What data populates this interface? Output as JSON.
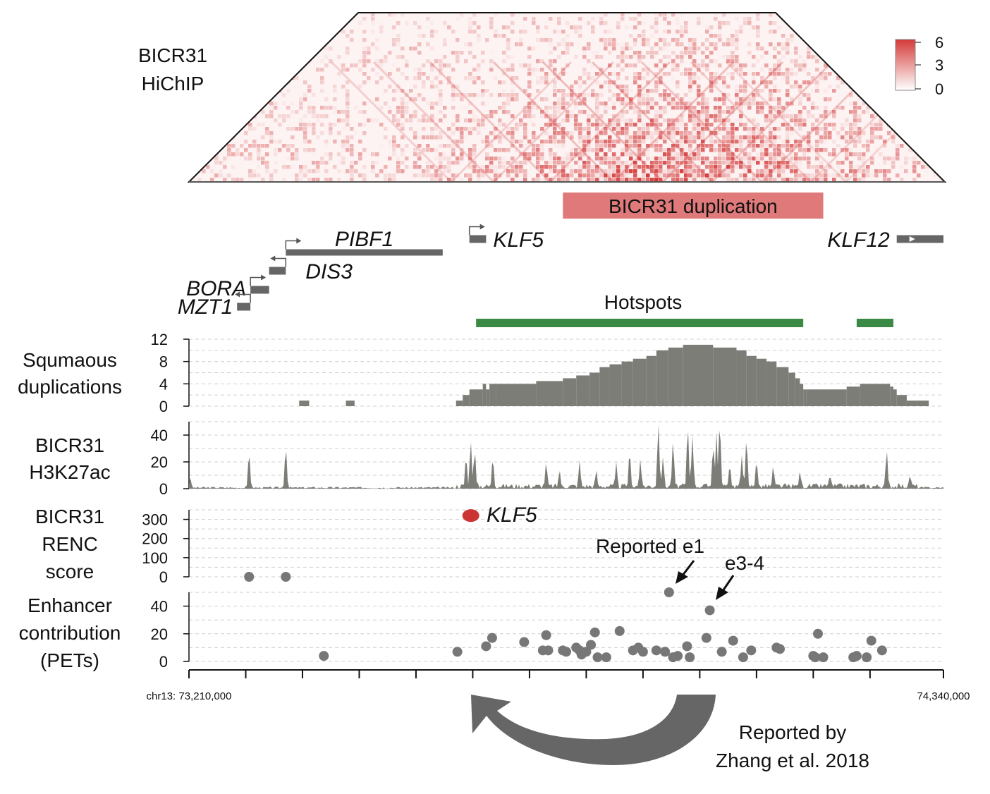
{
  "colors": {
    "hic": "#d43a3a",
    "dup_bar": "#e07a7a",
    "gene": "#666666",
    "hotspot": "#3a8a45",
    "track_fill": "#7d7d78",
    "dot": "#777777",
    "klf5_dot": "#cc3333",
    "arrow": "#666666"
  },
  "hichip": {
    "label_line1": "BICR31",
    "label_line2": "HiChIP",
    "legend_ticks": [
      "6",
      "3",
      "0"
    ],
    "duplication_label": "BICR31 duplication",
    "duplication_range": [
      73770000,
      74160000
    ]
  },
  "genes": [
    {
      "name": "PIBF1",
      "start": 73355000,
      "end": 73590000,
      "strand": "+",
      "row": 1
    },
    {
      "name": "KLF5",
      "start": 73630000,
      "end": 73655000,
      "strand": "+",
      "row": 0
    },
    {
      "name": "KLF12",
      "start": 74270000,
      "end": 74340000,
      "strand": "-",
      "row": 0
    },
    {
      "name": "DIS3",
      "start": 73330000,
      "end": 73355000,
      "strand": "-",
      "row": 2
    },
    {
      "name": "BORA",
      "start": 73302000,
      "end": 73330000,
      "strand": "+",
      "row": 3
    },
    {
      "name": "MZT1",
      "start": 73282000,
      "end": 73302000,
      "strand": "-",
      "row": 4
    }
  ],
  "hotspots": {
    "label": "Hotspots",
    "ranges": [
      [
        73640000,
        74130000
      ],
      [
        74210000,
        74265000
      ]
    ]
  },
  "tracks": {
    "squamous": {
      "label_line1": "Squmaous",
      "label_line2": "duplications"
    },
    "h3k27ac": {
      "label_line1": "BICR31",
      "label_line2": "H3K27ac"
    },
    "renc": {
      "label_line1": "BICR31",
      "label_line2": "RENC",
      "label_line3": "score"
    },
    "pets": {
      "label_line1": "Enhancer",
      "label_line2": "contribution",
      "label_line3": "(PETs)"
    }
  },
  "annotations": {
    "klf5": "KLF5",
    "e1": "Reported e1",
    "e34": "e3-4",
    "reported_by_line1": "Reported by",
    "reported_by_line2": "Zhang et al. 2018"
  },
  "axis": {
    "start_label": "chr13: 73,210,000",
    "end_label": "74,340,000",
    "start": 73210000,
    "end": 74340000
  },
  "chart_data": [
    {
      "type": "heatmap",
      "title": "BICR31 HiChIP",
      "color_scale": [
        0,
        6
      ],
      "legend_ticks": [
        6,
        3,
        0
      ]
    },
    {
      "type": "area",
      "title": "Squmaous duplications",
      "ylim": [
        0,
        12
      ],
      "yticks": [
        0,
        4,
        8,
        12
      ],
      "steps": [
        [
          73375000,
          73390000,
          1
        ],
        [
          73445000,
          73458000,
          1
        ],
        [
          73610000,
          73620000,
          1
        ],
        [
          73620000,
          73630000,
          2
        ],
        [
          73630000,
          73650000,
          3
        ],
        [
          73650000,
          73655000,
          4
        ],
        [
          73655000,
          73660000,
          3
        ],
        [
          73660000,
          73670000,
          4
        ],
        [
          73670000,
          73730000,
          4
        ],
        [
          73730000,
          73770000,
          4.5
        ],
        [
          73770000,
          73790000,
          5
        ],
        [
          73790000,
          73810000,
          5.5
        ],
        [
          73810000,
          73825000,
          6
        ],
        [
          73825000,
          73840000,
          7
        ],
        [
          73840000,
          73858000,
          7.5
        ],
        [
          73858000,
          73875000,
          8
        ],
        [
          73875000,
          73895000,
          8.5
        ],
        [
          73895000,
          73910000,
          9
        ],
        [
          73910000,
          73928000,
          10
        ],
        [
          73928000,
          73950000,
          10.5
        ],
        [
          73950000,
          73995000,
          11
        ],
        [
          73995000,
          74030000,
          10.5
        ],
        [
          74030000,
          74045000,
          10
        ],
        [
          74045000,
          74060000,
          9
        ],
        [
          74060000,
          74075000,
          8.5
        ],
        [
          74075000,
          74090000,
          8
        ],
        [
          74090000,
          74108000,
          7
        ],
        [
          74108000,
          74118000,
          6
        ],
        [
          74118000,
          74125000,
          5
        ],
        [
          74125000,
          74130000,
          4
        ],
        [
          74130000,
          74135000,
          3
        ],
        [
          74135000,
          74195000,
          3
        ],
        [
          74195000,
          74215000,
          3.5
        ],
        [
          74215000,
          74260000,
          4
        ],
        [
          74260000,
          74265000,
          3.5
        ],
        [
          74265000,
          74270000,
          3
        ],
        [
          74270000,
          74285000,
          2
        ],
        [
          74285000,
          74300000,
          1
        ],
        [
          74300000,
          74318000,
          1
        ]
      ]
    },
    {
      "type": "area",
      "title": "BICR31 H3K27ac",
      "ylim": [
        0,
        50
      ],
      "yticks": [
        0,
        20,
        40
      ],
      "peaks": [
        [
          73212000,
          8
        ],
        [
          73300000,
          27
        ],
        [
          73355000,
          31
        ],
        [
          73625000,
          24
        ],
        [
          73632000,
          36
        ],
        [
          73638000,
          29
        ],
        [
          73665000,
          23
        ],
        [
          73745000,
          20
        ],
        [
          73765000,
          14
        ],
        [
          73795000,
          21
        ],
        [
          73820000,
          14
        ],
        [
          73850000,
          20
        ],
        [
          73870000,
          28
        ],
        [
          73886000,
          22
        ],
        [
          73913000,
          49
        ],
        [
          73920000,
          24
        ],
        [
          73935000,
          36
        ],
        [
          73957000,
          47
        ],
        [
          73964000,
          40
        ],
        [
          73995000,
          32
        ],
        [
          74000000,
          42
        ],
        [
          74005000,
          50
        ],
        [
          74020000,
          18
        ],
        [
          74038000,
          25
        ],
        [
          74045000,
          38
        ],
        [
          74060000,
          21
        ],
        [
          74085000,
          17
        ],
        [
          74125000,
          13
        ],
        [
          74170000,
          10
        ],
        [
          74255000,
          29
        ],
        [
          74290000,
          10
        ]
      ]
    },
    {
      "type": "scatter",
      "title": "BICR31 RENC score",
      "ylim": [
        0,
        350
      ],
      "yticks": [
        0,
        100,
        200,
        300
      ],
      "points": [
        [
          73300000,
          0
        ],
        [
          73355000,
          0
        ],
        [
          73630000,
          320
        ]
      ],
      "highlight": {
        "label": "KLF5",
        "x": 73630000,
        "y": 320
      }
    },
    {
      "type": "scatter",
      "title": "Enhancer contribution (PETs)",
      "ylim": [
        0,
        50
      ],
      "yticks": [
        0,
        20,
        40
      ],
      "points": [
        [
          73412000,
          4
        ],
        [
          73612000,
          7
        ],
        [
          73655000,
          11
        ],
        [
          73664000,
          17
        ],
        [
          73712000,
          14
        ],
        [
          73740000,
          8
        ],
        [
          73745000,
          19
        ],
        [
          73748000,
          8
        ],
        [
          73770000,
          8
        ],
        [
          73775000,
          7
        ],
        [
          73790000,
          10
        ],
        [
          73795000,
          8
        ],
        [
          73798000,
          5
        ],
        [
          73805000,
          7
        ],
        [
          73812000,
          12
        ],
        [
          73818000,
          21
        ],
        [
          73822000,
          3
        ],
        [
          73835000,
          3
        ],
        [
          73855000,
          22
        ],
        [
          73875000,
          8
        ],
        [
          73883000,
          10
        ],
        [
          73890000,
          7
        ],
        [
          73910000,
          8
        ],
        [
          73923000,
          7
        ],
        [
          73929000,
          50
        ],
        [
          73935000,
          3
        ],
        [
          73942000,
          4
        ],
        [
          73956000,
          11
        ],
        [
          73960000,
          3
        ],
        [
          73985000,
          17
        ],
        [
          73990000,
          37
        ],
        [
          74008000,
          7
        ],
        [
          74025000,
          15
        ],
        [
          74040000,
          3
        ],
        [
          74052000,
          8
        ],
        [
          74090000,
          10
        ],
        [
          74095000,
          9
        ],
        [
          74145000,
          4
        ],
        [
          74148000,
          3
        ],
        [
          74152000,
          20
        ],
        [
          74160000,
          3
        ],
        [
          74205000,
          3
        ],
        [
          74210000,
          4
        ],
        [
          74225000,
          3
        ],
        [
          74232000,
          15
        ],
        [
          74248000,
          8
        ]
      ],
      "annotated_points": [
        {
          "label": "Reported e1",
          "x": 73929000,
          "y": 50
        },
        {
          "label": "e3-4",
          "x": 73990000,
          "y": 37
        }
      ]
    }
  ]
}
